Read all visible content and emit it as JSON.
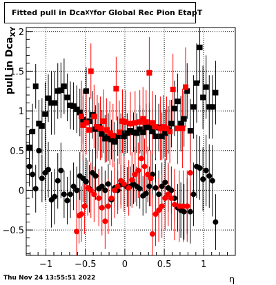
{
  "title": {
    "prefix": "Fitted pull in Dca",
    "subscript": "XY",
    "suffix": " for Global Rec Pion EtapT"
  },
  "timestamp": "Thu Nov 24 13:55:51 2022",
  "chart_data": {
    "type": "scatter",
    "xlabel": "η",
    "ylabel": "pull in Dca",
    "ylabel_subscript": "XY",
    "xlim": [
      -1.25,
      1.4
    ],
    "ylim": [
      -0.82,
      2.05
    ],
    "x_ticks": [
      -1,
      -0.5,
      0,
      0.5,
      1
    ],
    "x_tick_labels": [
      "−1",
      "−0.5",
      "0",
      "0.5",
      "1"
    ],
    "y_ticks": [
      -0.5,
      0,
      0.5,
      1,
      1.5,
      2
    ],
    "y_tick_labels": [
      "−0.5",
      "0",
      "0.5",
      "1",
      "1.5",
      "2"
    ],
    "grid": true,
    "series": [
      {
        "marker": "square",
        "color": "#000000",
        "points": [
          {
            "x": -1.21,
            "y": 0.54,
            "err": 0.22
          },
          {
            "x": -1.17,
            "y": 0.74,
            "err": 0.35
          },
          {
            "x": -1.13,
            "y": 1.31,
            "err": 0.28
          },
          {
            "x": -1.09,
            "y": 0.84,
            "err": 0.3
          },
          {
            "x": -1.05,
            "y": 0.81,
            "err": 0.35
          },
          {
            "x": -1.01,
            "y": 0.96,
            "err": 0.4
          },
          {
            "x": -0.97,
            "y": 1.16,
            "err": 0.3
          },
          {
            "x": -0.93,
            "y": 1.1,
            "err": 0.4
          },
          {
            "x": -0.89,
            "y": 1.1,
            "err": 0.4
          },
          {
            "x": -0.85,
            "y": 1.25,
            "err": 0.35
          },
          {
            "x": -0.81,
            "y": 1.26,
            "err": 0.35
          },
          {
            "x": -0.77,
            "y": 1.31,
            "err": 0.35
          },
          {
            "x": -0.73,
            "y": 1.17,
            "err": 0.3
          },
          {
            "x": -0.69,
            "y": 1.07,
            "err": 0.3
          },
          {
            "x": -0.65,
            "y": 1.06,
            "err": 0.3
          },
          {
            "x": -0.61,
            "y": 1.02,
            "err": 0.3
          },
          {
            "x": -0.57,
            "y": 0.98,
            "err": 0.3
          },
          {
            "x": -0.53,
            "y": 0.89,
            "err": 0.3
          },
          {
            "x": -0.49,
            "y": 1.25,
            "err": 0.3
          },
          {
            "x": -0.45,
            "y": 0.87,
            "err": 0.3
          },
          {
            "x": -0.41,
            "y": 0.95,
            "err": 0.3
          },
          {
            "x": -0.37,
            "y": 0.77,
            "err": 0.3
          },
          {
            "x": -0.33,
            "y": 0.8,
            "err": 0.3
          },
          {
            "x": -0.29,
            "y": 0.71,
            "err": 0.3
          },
          {
            "x": -0.25,
            "y": 0.65,
            "err": 0.3
          },
          {
            "x": -0.21,
            "y": 0.67,
            "err": 0.3
          },
          {
            "x": -0.17,
            "y": 0.64,
            "err": 0.25
          },
          {
            "x": -0.13,
            "y": 0.61,
            "err": 0.25
          },
          {
            "x": -0.09,
            "y": 0.68,
            "err": 0.25
          },
          {
            "x": -0.05,
            "y": 0.72,
            "err": 0.25
          },
          {
            "x": -0.01,
            "y": 0.68,
            "err": 0.25
          },
          {
            "x": 0.03,
            "y": 0.72,
            "err": 0.25
          },
          {
            "x": 0.07,
            "y": 0.75,
            "err": 0.25
          },
          {
            "x": 0.11,
            "y": 0.73,
            "err": 0.25
          },
          {
            "x": 0.15,
            "y": 0.72,
            "err": 0.25
          },
          {
            "x": 0.19,
            "y": 0.77,
            "err": 0.3
          },
          {
            "x": 0.23,
            "y": 0.73,
            "err": 0.3
          },
          {
            "x": 0.27,
            "y": 0.79,
            "err": 0.3
          },
          {
            "x": 0.31,
            "y": 0.8,
            "err": 0.3
          },
          {
            "x": 0.35,
            "y": 0.74,
            "err": 0.3
          },
          {
            "x": 0.39,
            "y": 0.68,
            "err": 0.3
          },
          {
            "x": 0.43,
            "y": 0.79,
            "err": 0.3
          },
          {
            "x": 0.47,
            "y": 0.68,
            "err": 0.3
          },
          {
            "x": 0.51,
            "y": 0.72,
            "err": 0.3
          },
          {
            "x": 0.55,
            "y": 0.76,
            "err": 0.3
          },
          {
            "x": 0.59,
            "y": 0.84,
            "err": 0.3
          },
          {
            "x": 0.63,
            "y": 1.03,
            "err": 0.35
          },
          {
            "x": 0.67,
            "y": 1.12,
            "err": 0.35
          },
          {
            "x": 0.71,
            "y": 0.84,
            "err": 0.35
          },
          {
            "x": 0.75,
            "y": 0.9,
            "err": 0.35
          },
          {
            "x": 0.79,
            "y": 1.25,
            "err": 0.35
          },
          {
            "x": 0.83,
            "y": 0.75,
            "err": 0.4
          },
          {
            "x": 0.87,
            "y": 1.05,
            "err": 0.4
          },
          {
            "x": 0.91,
            "y": 1.35,
            "err": 0.5
          },
          {
            "x": 0.95,
            "y": 1.8,
            "err": 0.45
          },
          {
            "x": 0.99,
            "y": 1.17,
            "err": 0.4
          },
          {
            "x": 1.03,
            "y": 1.3,
            "err": 0.4
          },
          {
            "x": 1.07,
            "y": 1.05,
            "err": 0.4
          },
          {
            "x": 1.11,
            "y": 1.05,
            "err": 0.4
          },
          {
            "x": 1.15,
            "y": 1.23,
            "err": 0.4
          }
        ]
      },
      {
        "marker": "circle",
        "color": "#000000",
        "points": [
          {
            "x": -1.21,
            "y": 0.3,
            "err": 0.25
          },
          {
            "x": -1.17,
            "y": 0.2,
            "err": 0.3
          },
          {
            "x": -1.13,
            "y": 0.02,
            "err": 0.3
          },
          {
            "x": -1.09,
            "y": 0.5,
            "err": 0.35
          },
          {
            "x": -1.05,
            "y": 0.15,
            "err": 0.3
          },
          {
            "x": -1.01,
            "y": 0.22,
            "err": 0.35
          },
          {
            "x": -0.97,
            "y": 0.26,
            "err": 0.35
          },
          {
            "x": -0.93,
            "y": -0.12,
            "err": 0.35
          },
          {
            "x": -0.89,
            "y": -0.08,
            "err": 0.35
          },
          {
            "x": -0.85,
            "y": 0.12,
            "err": 0.35
          },
          {
            "x": -0.81,
            "y": 0.25,
            "err": 0.35
          },
          {
            "x": -0.77,
            "y": -0.05,
            "err": 0.3
          },
          {
            "x": -0.73,
            "y": -0.13,
            "err": 0.3
          },
          {
            "x": -0.69,
            "y": -0.05,
            "err": 0.3
          },
          {
            "x": -0.65,
            "y": 0.05,
            "err": 0.3
          },
          {
            "x": -0.61,
            "y": 0.0,
            "err": 0.3
          },
          {
            "x": -0.57,
            "y": 0.18,
            "err": 0.3
          },
          {
            "x": -0.53,
            "y": 0.15,
            "err": 0.3
          },
          {
            "x": -0.49,
            "y": 0.11,
            "err": 0.3
          },
          {
            "x": -0.45,
            "y": 0.02,
            "err": 0.3
          },
          {
            "x": -0.41,
            "y": 0.22,
            "err": 0.3
          },
          {
            "x": -0.37,
            "y": 0.18,
            "err": 0.3
          },
          {
            "x": -0.33,
            "y": 0.02,
            "err": 0.25
          },
          {
            "x": -0.29,
            "y": 0.05,
            "err": 0.25
          },
          {
            "x": -0.25,
            "y": 0.0,
            "err": 0.25
          },
          {
            "x": -0.21,
            "y": 0.08,
            "err": 0.25
          },
          {
            "x": -0.17,
            "y": -0.12,
            "err": 0.25
          },
          {
            "x": -0.13,
            "y": 0.03,
            "err": 0.25
          },
          {
            "x": -0.09,
            "y": 0.0,
            "err": 0.25
          },
          {
            "x": -0.05,
            "y": 0.07,
            "err": 0.25
          },
          {
            "x": -0.01,
            "y": 0.07,
            "err": 0.25
          },
          {
            "x": 0.03,
            "y": 0.04,
            "err": 0.25
          },
          {
            "x": 0.07,
            "y": 0.05,
            "err": 0.25
          },
          {
            "x": 0.11,
            "y": 0.08,
            "err": 0.25
          },
          {
            "x": 0.15,
            "y": 0.05,
            "err": 0.25
          },
          {
            "x": 0.19,
            "y": 0.02,
            "err": 0.25
          },
          {
            "x": 0.23,
            "y": -0.07,
            "err": 0.25
          },
          {
            "x": 0.27,
            "y": -0.04,
            "err": 0.25
          },
          {
            "x": 0.31,
            "y": 0.05,
            "err": 0.25
          },
          {
            "x": 0.35,
            "y": 0.2,
            "err": 0.3
          },
          {
            "x": 0.39,
            "y": 0.03,
            "err": 0.3
          },
          {
            "x": 0.43,
            "y": -0.05,
            "err": 0.3
          },
          {
            "x": 0.47,
            "y": 0.05,
            "err": 0.3
          },
          {
            "x": 0.51,
            "y": 0.1,
            "err": 0.3
          },
          {
            "x": 0.55,
            "y": 0.03,
            "err": 0.3
          },
          {
            "x": 0.59,
            "y": 0.0,
            "err": 0.3
          },
          {
            "x": 0.63,
            "y": -0.1,
            "err": 0.3
          },
          {
            "x": 0.67,
            "y": -0.22,
            "err": 0.3
          },
          {
            "x": 0.71,
            "y": -0.25,
            "err": 0.35
          },
          {
            "x": 0.75,
            "y": -0.27,
            "err": 0.35
          },
          {
            "x": 0.79,
            "y": -0.2,
            "err": 0.35
          },
          {
            "x": 0.83,
            "y": -0.27,
            "err": 0.4
          },
          {
            "x": 0.87,
            "y": -0.05,
            "err": 0.4
          },
          {
            "x": 0.91,
            "y": 0.3,
            "err": 0.4
          },
          {
            "x": 0.95,
            "y": 0.28,
            "err": 0.4
          },
          {
            "x": 0.99,
            "y": 0.14,
            "err": 0.4
          },
          {
            "x": 1.03,
            "y": 0.25,
            "err": 0.45
          },
          {
            "x": 1.07,
            "y": 0.18,
            "err": 0.4
          },
          {
            "x": 1.11,
            "y": 0.12,
            "err": 0.45
          },
          {
            "x": 1.15,
            "y": -0.4,
            "err": 0.35
          }
        ]
      },
      {
        "marker": "square",
        "color": "#ff0000",
        "points": [
          {
            "x": -0.55,
            "y": 0.93,
            "err": 0.45
          },
          {
            "x": -0.53,
            "y": 0.82,
            "err": 0.45
          },
          {
            "x": -0.49,
            "y": 0.85,
            "err": 0.4
          },
          {
            "x": -0.45,
            "y": 0.76,
            "err": 0.4
          },
          {
            "x": -0.43,
            "y": 1.5,
            "err": 0.35
          },
          {
            "x": -0.39,
            "y": 0.93,
            "err": 0.4
          },
          {
            "x": -0.35,
            "y": 0.8,
            "err": 0.4
          },
          {
            "x": -0.31,
            "y": 0.78,
            "err": 0.4
          },
          {
            "x": -0.27,
            "y": 0.87,
            "err": 0.4
          },
          {
            "x": -0.23,
            "y": 0.76,
            "err": 0.4
          },
          {
            "x": -0.19,
            "y": 0.72,
            "err": 0.4
          },
          {
            "x": -0.15,
            "y": 0.69,
            "err": 0.4
          },
          {
            "x": -0.11,
            "y": 1.28,
            "err": 0.4
          },
          {
            "x": -0.07,
            "y": 0.73,
            "err": 0.4
          },
          {
            "x": -0.03,
            "y": 0.87,
            "err": 0.4
          },
          {
            "x": 0.01,
            "y": 0.86,
            "err": 0.4
          },
          {
            "x": 0.07,
            "y": 0.84,
            "err": 0.4
          },
          {
            "x": 0.13,
            "y": 0.85,
            "err": 0.4
          },
          {
            "x": 0.19,
            "y": 0.86,
            "err": 0.4
          },
          {
            "x": 0.23,
            "y": 0.9,
            "err": 0.4
          },
          {
            "x": 0.27,
            "y": 0.86,
            "err": 0.4
          },
          {
            "x": 0.31,
            "y": 1.48,
            "err": 0.45
          },
          {
            "x": 0.35,
            "y": 0.85,
            "err": 0.4
          },
          {
            "x": 0.39,
            "y": 0.8,
            "err": 0.4
          },
          {
            "x": 0.45,
            "y": 0.78,
            "err": 0.4
          },
          {
            "x": 0.49,
            "y": 0.8,
            "err": 0.4
          },
          {
            "x": 0.53,
            "y": 0.78,
            "err": 0.4
          },
          {
            "x": 0.57,
            "y": 0.74,
            "err": 0.4
          },
          {
            "x": 0.61,
            "y": 1.27,
            "err": 0.45
          },
          {
            "x": 0.67,
            "y": 0.78,
            "err": 0.45
          },
          {
            "x": 0.73,
            "y": 0.78,
            "err": 0.5
          },
          {
            "x": 0.77,
            "y": 1.3,
            "err": 0.5
          }
        ]
      },
      {
        "marker": "circle",
        "color": "#ff0000",
        "points": [
          {
            "x": -0.61,
            "y": -0.52,
            "err": 0.4
          },
          {
            "x": -0.58,
            "y": -0.32,
            "err": 0.35
          },
          {
            "x": -0.55,
            "y": -0.3,
            "err": 0.35
          },
          {
            "x": -0.51,
            "y": -0.2,
            "err": 0.35
          },
          {
            "x": -0.47,
            "y": 0.03,
            "err": 0.35
          },
          {
            "x": -0.43,
            "y": 0.0,
            "err": 0.35
          },
          {
            "x": -0.39,
            "y": -0.05,
            "err": 0.35
          },
          {
            "x": -0.33,
            "y": -0.1,
            "err": 0.35
          },
          {
            "x": -0.29,
            "y": -0.22,
            "err": 0.35
          },
          {
            "x": -0.25,
            "y": -0.39,
            "err": 0.35
          },
          {
            "x": -0.21,
            "y": -0.2,
            "err": 0.35
          },
          {
            "x": -0.17,
            "y": -0.1,
            "err": 0.35
          },
          {
            "x": -0.13,
            "y": 0.0,
            "err": 0.35
          },
          {
            "x": -0.09,
            "y": 0.05,
            "err": 0.35
          },
          {
            "x": -0.05,
            "y": 0.12,
            "err": 0.35
          },
          {
            "x": -0.01,
            "y": 0.08,
            "err": 0.35
          },
          {
            "x": 0.05,
            "y": 0.03,
            "err": 0.35
          },
          {
            "x": 0.09,
            "y": 0.13,
            "err": 0.35
          },
          {
            "x": 0.13,
            "y": 0.2,
            "err": 0.35
          },
          {
            "x": 0.17,
            "y": 0.25,
            "err": 0.35
          },
          {
            "x": 0.21,
            "y": 0.4,
            "err": 0.35
          },
          {
            "x": 0.25,
            "y": 0.3,
            "err": 0.35
          },
          {
            "x": 0.29,
            "y": 0.2,
            "err": 0.35
          },
          {
            "x": 0.33,
            "y": 0.15,
            "err": 0.35
          },
          {
            "x": 0.35,
            "y": -0.55,
            "err": 0.5
          },
          {
            "x": 0.39,
            "y": -0.3,
            "err": 0.4
          },
          {
            "x": 0.43,
            "y": -0.25,
            "err": 0.4
          },
          {
            "x": 0.47,
            "y": -0.2,
            "err": 0.4
          },
          {
            "x": 0.51,
            "y": -0.1,
            "err": 0.4
          },
          {
            "x": 0.55,
            "y": -0.05,
            "err": 0.4
          },
          {
            "x": 0.59,
            "y": -0.1,
            "err": 0.4
          },
          {
            "x": 0.63,
            "y": -0.18,
            "err": 0.45
          },
          {
            "x": 0.69,
            "y": -0.2,
            "err": 0.45
          },
          {
            "x": 0.74,
            "y": -0.2,
            "err": 0.45
          },
          {
            "x": 0.79,
            "y": -0.2,
            "err": 0.45
          },
          {
            "x": 0.83,
            "y": 0.22,
            "err": 0.5
          }
        ]
      }
    ]
  }
}
